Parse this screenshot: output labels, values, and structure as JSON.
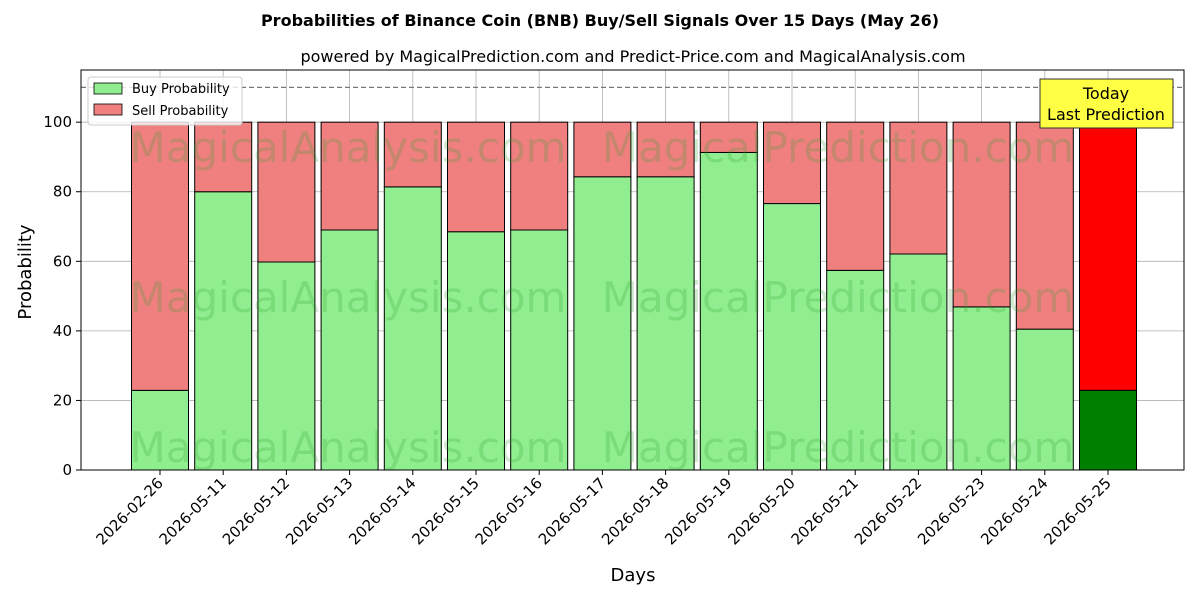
{
  "chart_data": {
    "type": "bar",
    "stacked": true,
    "title": "Probabilities of Binance Coin (BNB) Buy/Sell Signals Over 15 Days (May 26)",
    "subtitle": "powered by MagicalPrediction.com and Predict-Price.com and MagicalAnalysis.com",
    "xlabel": "Days",
    "ylabel": "Probability",
    "ylim": [
      0,
      115
    ],
    "yticks": [
      0,
      20,
      40,
      60,
      80,
      100
    ],
    "threshold_line": 110,
    "grid": true,
    "legend_position": "top-left",
    "categories": [
      "2026-02-26",
      "2026-05-11",
      "2026-05-12",
      "2026-05-13",
      "2026-05-14",
      "2026-05-15",
      "2026-05-16",
      "2026-05-17",
      "2026-05-18",
      "2026-05-19",
      "2026-05-20",
      "2026-05-21",
      "2026-05-22",
      "2026-05-23",
      "2026-05-24",
      "2026-05-25"
    ],
    "series": [
      {
        "name": "Buy Probability",
        "color": "#90ee90",
        "values": [
          22.9,
          80.0,
          59.8,
          69.0,
          81.4,
          68.5,
          69.0,
          84.3,
          84.3,
          91.3,
          76.6,
          57.4,
          62.1,
          46.9,
          40.5,
          22.9
        ]
      },
      {
        "name": "Sell Probability",
        "color": "#f08080",
        "values": [
          77.1,
          20.0,
          40.2,
          31.0,
          18.6,
          31.5,
          31.0,
          15.7,
          15.7,
          8.7,
          23.4,
          42.6,
          37.9,
          53.1,
          59.5,
          77.1
        ]
      }
    ],
    "highlight_last": {
      "buy_color": "#008000",
      "sell_color": "#ff0000"
    },
    "annotation": {
      "text_line1": "Today",
      "text_line2": "Last Prediction",
      "background": "#ffff44"
    },
    "watermarks": [
      "MagicalAnalysis.com",
      "MagicalPrediction.com"
    ]
  }
}
